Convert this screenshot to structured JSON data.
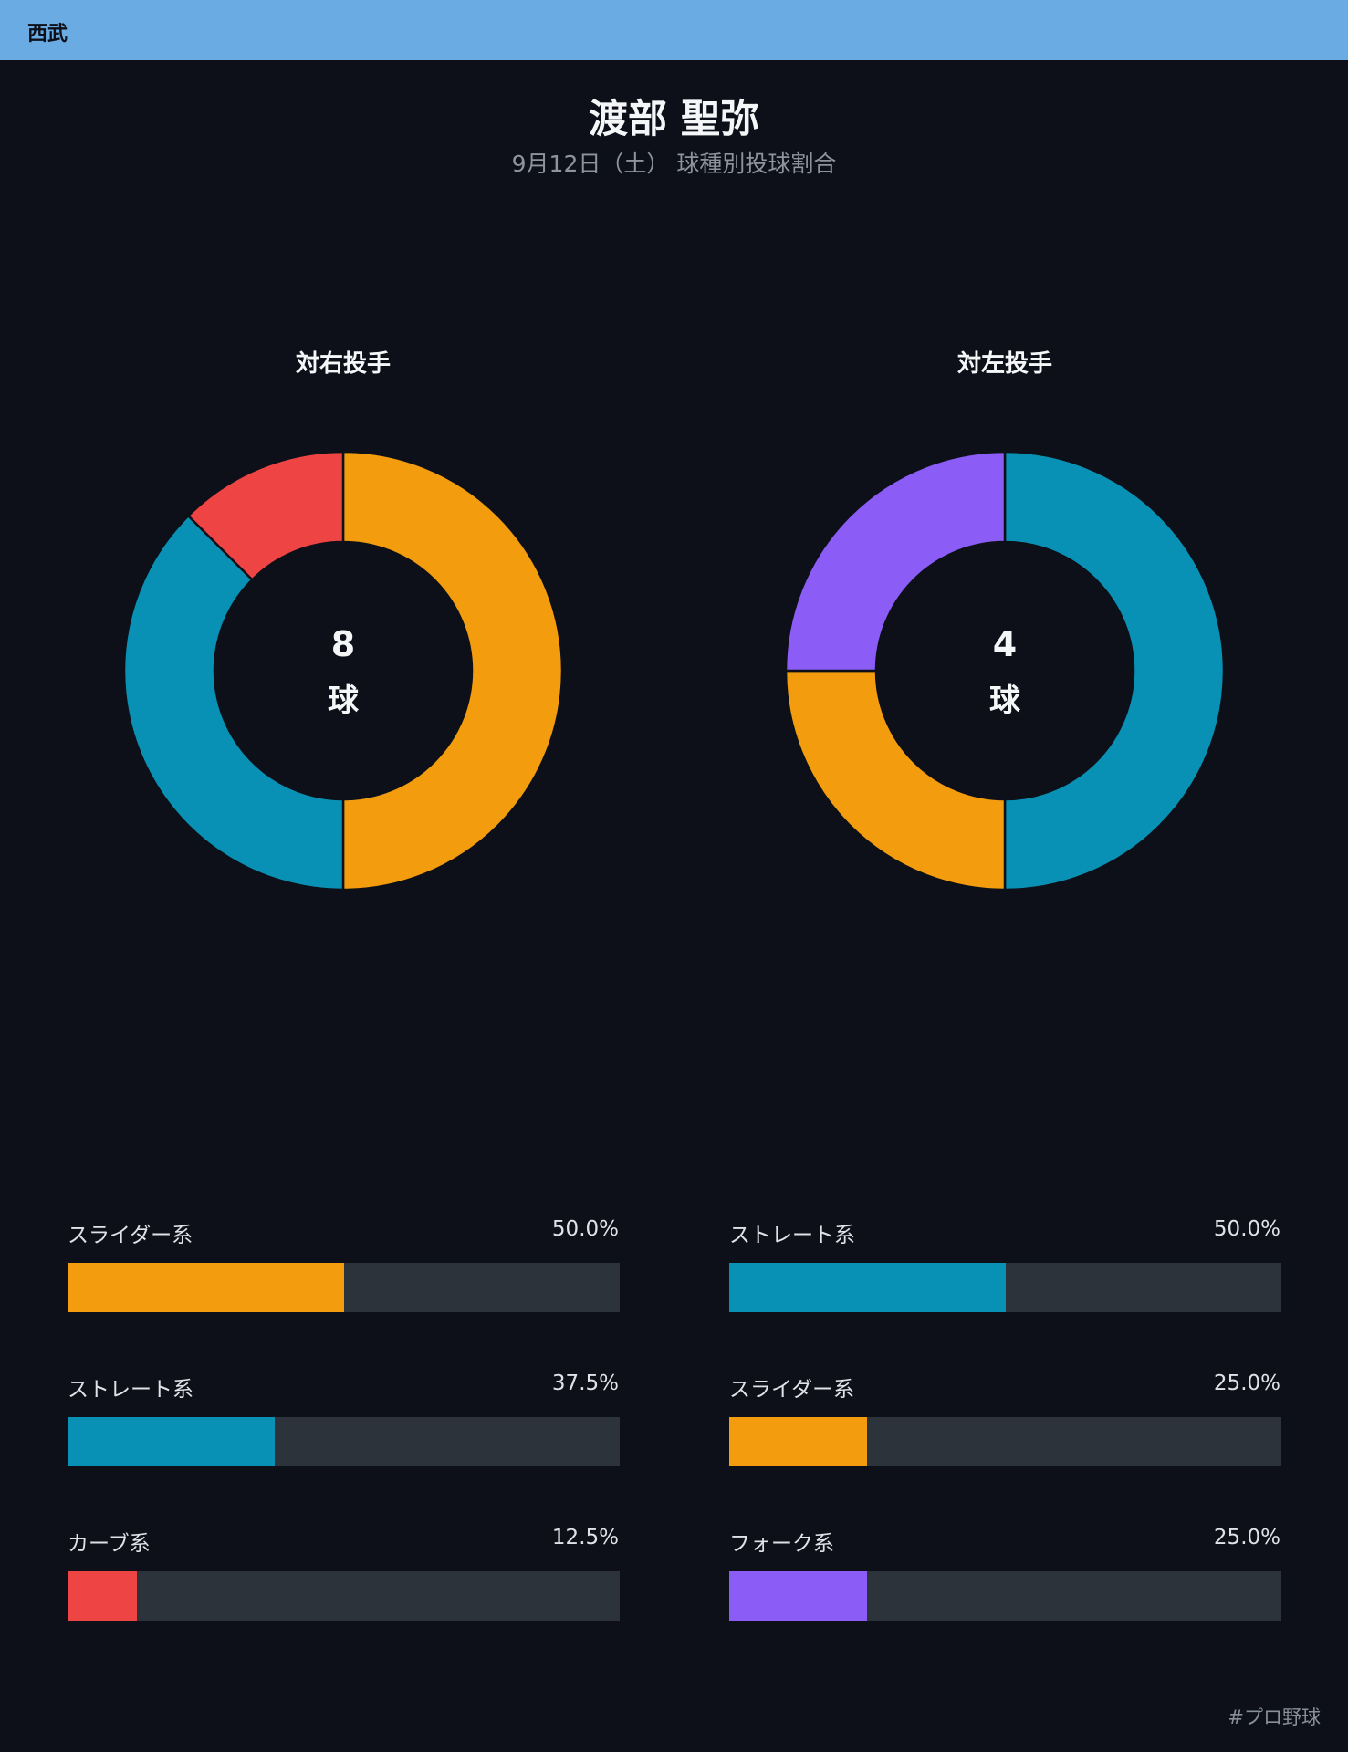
{
  "header": {
    "team": "西武"
  },
  "player": {
    "name": "渡部 聖弥"
  },
  "subtitle": "9月12日（土） 球種別投球割合",
  "colors": {
    "slider": "#f39c0e",
    "straight": "#0891b4",
    "curve": "#ef4444",
    "fork": "#8b5cf6",
    "track": "#2d333b",
    "background": "#0d1018"
  },
  "chart_data": [
    {
      "type": "pie",
      "title": "対右投手",
      "total": "8",
      "unit": "球",
      "slices": [
        {
          "label": "スライダー系",
          "value": 50.0,
          "pct": "50.0%",
          "color": "#f39c0e"
        },
        {
          "label": "ストレート系",
          "value": 37.5,
          "pct": "37.5%",
          "color": "#0891b4"
        },
        {
          "label": "カーブ系",
          "value": 12.5,
          "pct": "12.5%",
          "color": "#ef4444"
        }
      ]
    },
    {
      "type": "pie",
      "title": "対左投手",
      "total": "4",
      "unit": "球",
      "slices": [
        {
          "label": "ストレート系",
          "value": 50.0,
          "pct": "50.0%",
          "color": "#0891b4"
        },
        {
          "label": "スライダー系",
          "value": 25.0,
          "pct": "25.0%",
          "color": "#f39c0e"
        },
        {
          "label": "フォーク系",
          "value": 25.0,
          "pct": "25.0%",
          "color": "#8b5cf6"
        }
      ]
    }
  ],
  "footer": {
    "hashtag": "#プロ野球"
  }
}
